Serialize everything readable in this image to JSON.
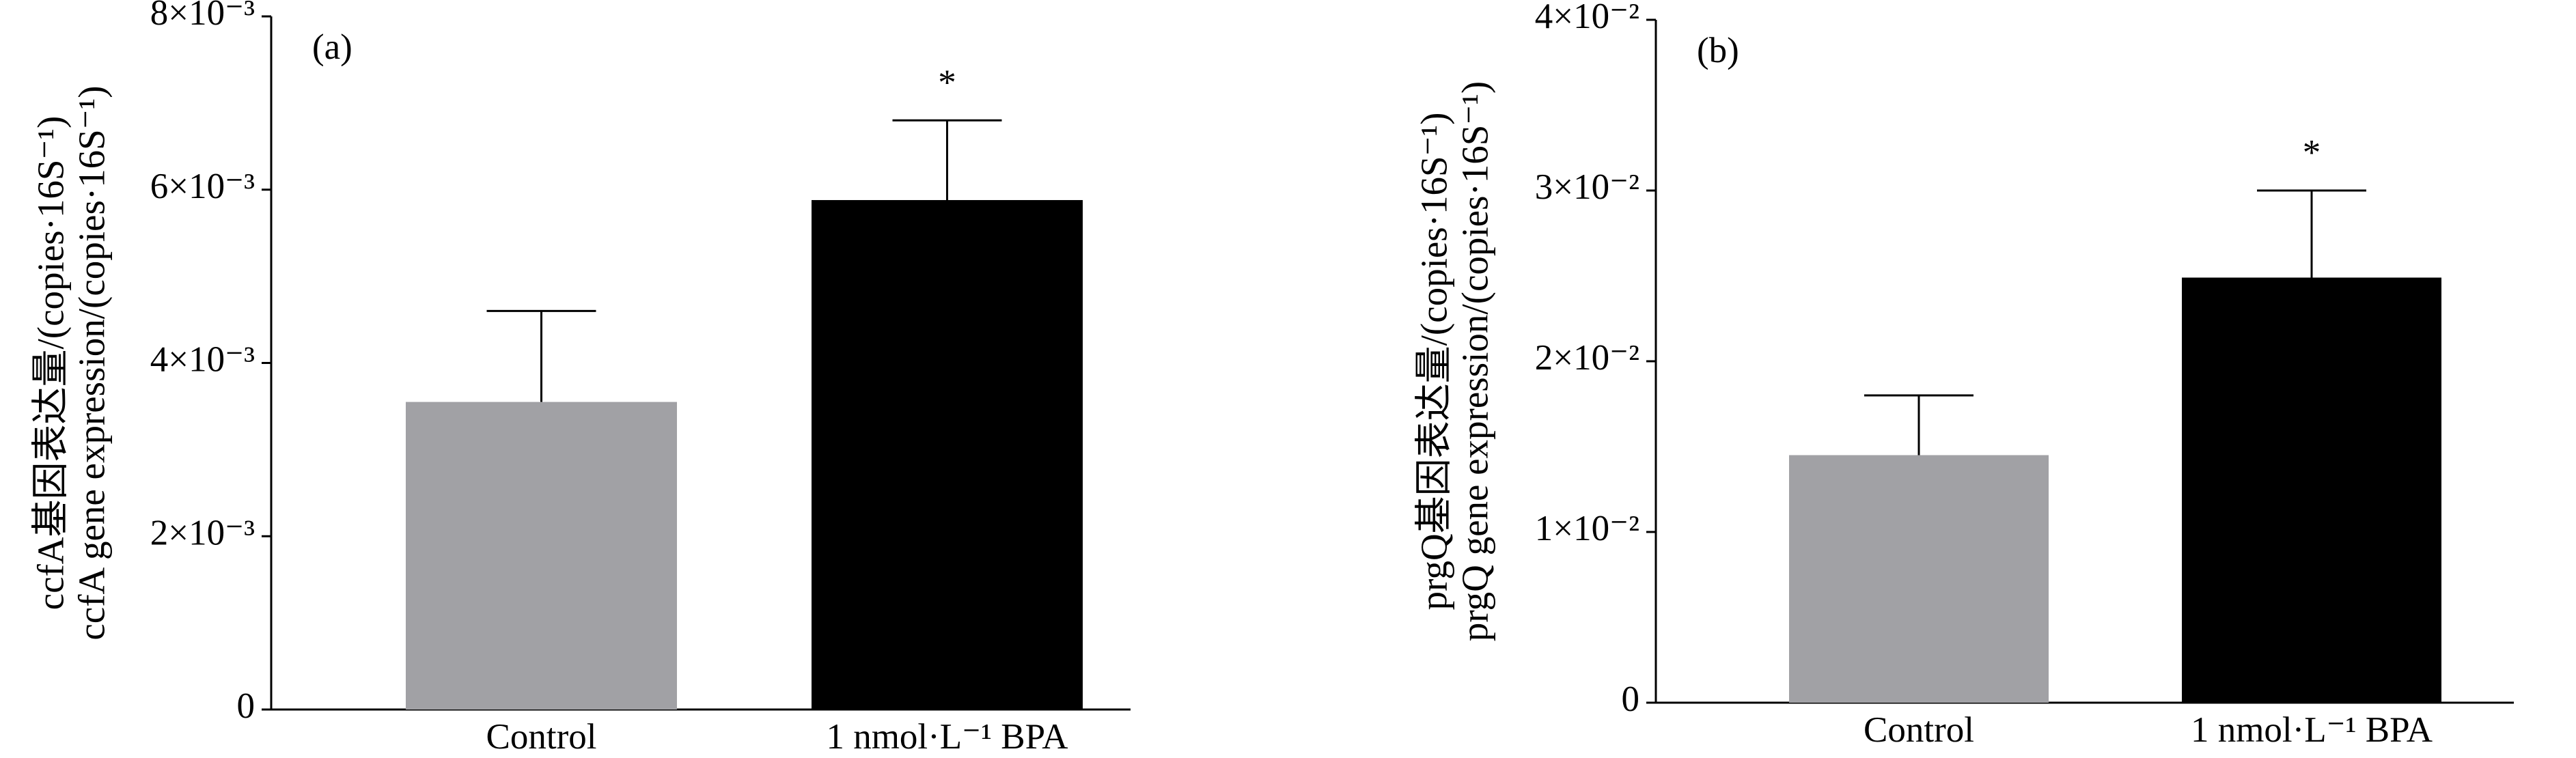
{
  "chart_data": [
    {
      "type": "bar",
      "panel_label": "(a)",
      "ylabel": [
        "ccfA基因表达量/(copies·16S⁻¹)",
        "ccfA gene expression/(copies·16S⁻¹)"
      ],
      "categories": [
        "Control",
        "1 nmol·L⁻¹ BPA"
      ],
      "values": [
        0.00355,
        0.00588
      ],
      "errors": [
        0.00105,
        0.00092
      ],
      "colors": [
        "#a1a1a5",
        "#000000"
      ],
      "significance": [
        null,
        "*"
      ],
      "ylim": [
        0,
        0.008
      ],
      "yticks": [
        0,
        {
          "value": 0.002,
          "label": "2×10⁻³"
        },
        {
          "value": 0.004,
          "label": "4×10⁻³"
        },
        {
          "value": 0.006,
          "label": "6×10⁻³"
        },
        {
          "value": 0.008,
          "label": "8×10⁻³"
        }
      ]
    },
    {
      "type": "bar",
      "panel_label": "(b)",
      "ylabel": [
        "prgQ基因表达量/(copies·16S⁻¹)",
        "prgQ gene expression/(copies·16S⁻¹)"
      ],
      "categories": [
        "Control",
        "1 nmol·L⁻¹ BPA"
      ],
      "values": [
        0.0145,
        0.0249
      ],
      "errors": [
        0.0035,
        0.0051
      ],
      "colors": [
        "#a1a1a5",
        "#000000"
      ],
      "significance": [
        null,
        "*"
      ],
      "ylim": [
        0,
        0.04
      ],
      "yticks": [
        0,
        {
          "value": 0.01,
          "label": "1×10⁻²"
        },
        {
          "value": 0.02,
          "label": "2×10⁻²"
        },
        {
          "value": 0.03,
          "label": "3×10⁻²"
        },
        {
          "value": 0.04,
          "label": "4×10⁻²"
        }
      ]
    }
  ]
}
